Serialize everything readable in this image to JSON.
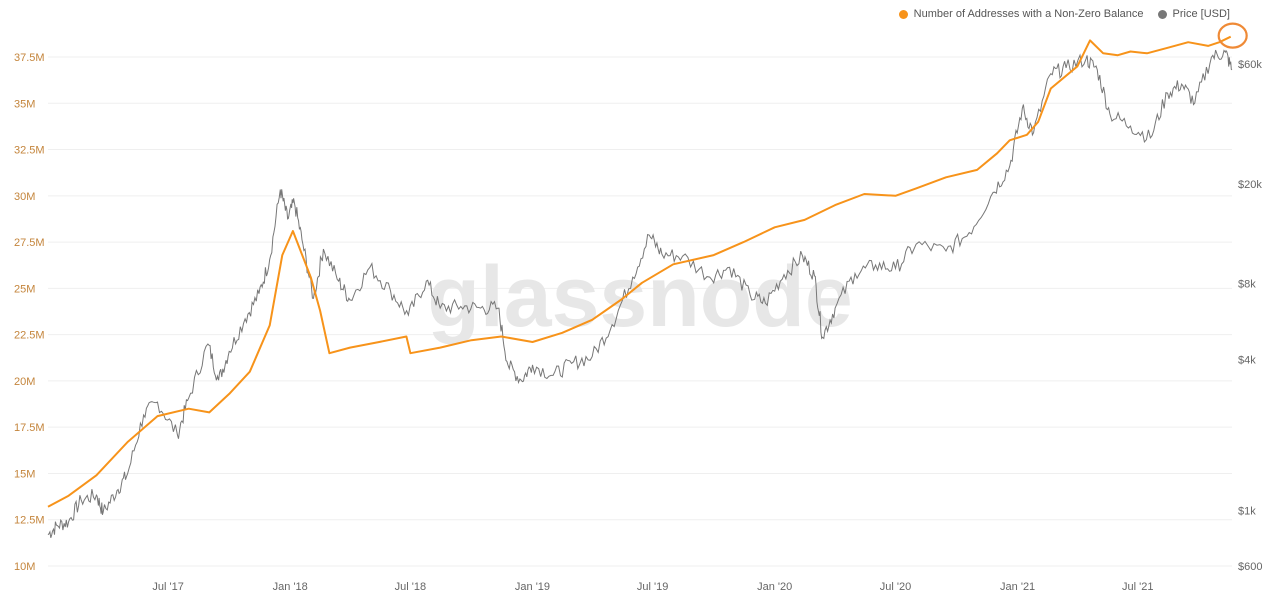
{
  "watermark": "glassnode",
  "colors": {
    "addresses": "#f7931a",
    "price": "#777777",
    "grid": "#efefef",
    "left_tick": "#c4853c",
    "right_tick": "#666666",
    "x_tick": "#666666"
  },
  "chart_data": {
    "type": "line",
    "legend": [
      {
        "label": "Number of Addresses with a Non-Zero Balance",
        "color": "#f7931a"
      },
      {
        "label": "Price [USD]",
        "color": "#777777"
      }
    ],
    "legend_position": "top-right",
    "grid": true,
    "x_ticks": [
      "Jul '17",
      "Jan '18",
      "Jul '18",
      "Jan '19",
      "Jul '19",
      "Jan '20",
      "Jul '20",
      "Jan '21",
      "Jul '21"
    ],
    "y_left": {
      "ticks": [
        "10M",
        "12.5M",
        "15M",
        "17.5M",
        "20M",
        "22.5M",
        "25M",
        "27.5M",
        "30M",
        "32.5M",
        "35M",
        "37.5M"
      ],
      "range": [
        10000000,
        39500000
      ]
    },
    "y_right": {
      "scale": "log",
      "ticks": [
        "$600",
        "$1k",
        "$4k",
        "$8k",
        "$20k",
        "$60k"
      ],
      "tick_values": [
        600,
        1000,
        4000,
        8000,
        20000,
        60000
      ],
      "range": [
        600,
        90000
      ]
    },
    "x_range": [
      "2017-01-01",
      "2021-11-20"
    ],
    "series": [
      {
        "name": "Number of Addresses with a Non-Zero Balance",
        "axis": "left",
        "points": [
          [
            "2017-01-01",
            13200000
          ],
          [
            "2017-02-01",
            13800000
          ],
          [
            "2017-03-15",
            14900000
          ],
          [
            "2017-05-01",
            16700000
          ],
          [
            "2017-06-15",
            18100000
          ],
          [
            "2017-08-01",
            18500000
          ],
          [
            "2017-09-01",
            18300000
          ],
          [
            "2017-10-01",
            19300000
          ],
          [
            "2017-11-01",
            20500000
          ],
          [
            "2017-12-01",
            23000000
          ],
          [
            "2017-12-20",
            26800000
          ],
          [
            "2018-01-05",
            28100000
          ],
          [
            "2018-02-01",
            25600000
          ],
          [
            "2018-02-15",
            23800000
          ],
          [
            "2018-03-01",
            21500000
          ],
          [
            "2018-04-01",
            21800000
          ],
          [
            "2018-05-15",
            22100000
          ],
          [
            "2018-06-25",
            22400000
          ],
          [
            "2018-07-01",
            21500000
          ],
          [
            "2018-08-15",
            21800000
          ],
          [
            "2018-10-01",
            22200000
          ],
          [
            "2018-11-15",
            22400000
          ],
          [
            "2019-01-01",
            22100000
          ],
          [
            "2019-02-15",
            22600000
          ],
          [
            "2019-04-01",
            23300000
          ],
          [
            "2019-05-15",
            24400000
          ],
          [
            "2019-06-15",
            25300000
          ],
          [
            "2019-08-01",
            26300000
          ],
          [
            "2019-10-01",
            26800000
          ],
          [
            "2019-11-15",
            27500000
          ],
          [
            "2020-01-01",
            28300000
          ],
          [
            "2020-02-15",
            28700000
          ],
          [
            "2020-04-01",
            29500000
          ],
          [
            "2020-05-15",
            30100000
          ],
          [
            "2020-07-01",
            30000000
          ],
          [
            "2020-08-01",
            30400000
          ],
          [
            "2020-09-15",
            31000000
          ],
          [
            "2020-11-01",
            31400000
          ],
          [
            "2020-12-01",
            32300000
          ],
          [
            "2020-12-20",
            33000000
          ],
          [
            "2021-01-15",
            33300000
          ],
          [
            "2021-02-01",
            34000000
          ],
          [
            "2021-02-20",
            35800000
          ],
          [
            "2021-04-01",
            37000000
          ],
          [
            "2021-04-20",
            38400000
          ],
          [
            "2021-05-10",
            37700000
          ],
          [
            "2021-06-01",
            37600000
          ],
          [
            "2021-06-20",
            37800000
          ],
          [
            "2021-07-15",
            37700000
          ],
          [
            "2021-08-15",
            38000000
          ],
          [
            "2021-09-15",
            38300000
          ],
          [
            "2021-10-15",
            38100000
          ],
          [
            "2021-11-01",
            38300000
          ],
          [
            "2021-11-18",
            38600000
          ]
        ]
      },
      {
        "name": "Price [USD]",
        "axis": "right",
        "points": [
          [
            "2017-01-01",
            800
          ],
          [
            "2017-01-15",
            870
          ],
          [
            "2017-02-01",
            900
          ],
          [
            "2017-02-20",
            1100
          ],
          [
            "2017-03-15",
            1150
          ],
          [
            "2017-03-25",
            980
          ],
          [
            "2017-04-15",
            1200
          ],
          [
            "2017-05-01",
            1400
          ],
          [
            "2017-05-25",
            2400
          ],
          [
            "2017-06-15",
            2700
          ],
          [
            "2017-07-15",
            2000
          ],
          [
            "2017-08-01",
            2800
          ],
          [
            "2017-08-30",
            4600
          ],
          [
            "2017-09-15",
            3300
          ],
          [
            "2017-10-01",
            4300
          ],
          [
            "2017-10-25",
            5800
          ],
          [
            "2017-11-15",
            7300
          ],
          [
            "2017-12-01",
            10000
          ],
          [
            "2017-12-17",
            19000
          ],
          [
            "2017-12-28",
            14500
          ],
          [
            "2018-01-07",
            17000
          ],
          [
            "2018-01-20",
            11500
          ],
          [
            "2018-02-05",
            7000
          ],
          [
            "2018-02-20",
            11000
          ],
          [
            "2018-03-15",
            8200
          ],
          [
            "2018-04-01",
            6900
          ],
          [
            "2018-05-01",
            9300
          ],
          [
            "2018-06-01",
            7500
          ],
          [
            "2018-06-28",
            6000
          ],
          [
            "2018-07-25",
            8200
          ],
          [
            "2018-08-15",
            6400
          ],
          [
            "2018-09-15",
            6500
          ],
          [
            "2018-10-15",
            6400
          ],
          [
            "2018-11-10",
            6400
          ],
          [
            "2018-11-25",
            3800
          ],
          [
            "2018-12-15",
            3300
          ],
          [
            "2019-01-01",
            3800
          ],
          [
            "2019-02-01",
            3450
          ],
          [
            "2019-03-01",
            3850
          ],
          [
            "2019-04-01",
            4100
          ],
          [
            "2019-05-01",
            5500
          ],
          [
            "2019-06-01",
            8500
          ],
          [
            "2019-06-26",
            12500
          ],
          [
            "2019-07-15",
            10500
          ],
          [
            "2019-08-15",
            10300
          ],
          [
            "2019-09-25",
            8500
          ],
          [
            "2019-10-25",
            9300
          ],
          [
            "2019-11-25",
            7200
          ],
          [
            "2019-12-18",
            6700
          ],
          [
            "2020-01-15",
            8700
          ],
          [
            "2020-02-12",
            10300
          ],
          [
            "2020-03-01",
            8600
          ],
          [
            "2020-03-13",
            4900
          ],
          [
            "2020-04-01",
            6400
          ],
          [
            "2020-05-01",
            8800
          ],
          [
            "2020-06-01",
            9500
          ],
          [
            "2020-07-01",
            9200
          ],
          [
            "2020-08-01",
            11500
          ],
          [
            "2020-09-15",
            10800
          ],
          [
            "2020-10-20",
            12800
          ],
          [
            "2020-11-25",
            18500
          ],
          [
            "2020-12-20",
            23500
          ],
          [
            "2021-01-08",
            40000
          ],
          [
            "2021-01-25",
            32000
          ],
          [
            "2021-02-20",
            55000
          ],
          [
            "2021-03-15",
            58000
          ],
          [
            "2021-04-14",
            63000
          ],
          [
            "2021-05-01",
            57000
          ],
          [
            "2021-05-20",
            38000
          ],
          [
            "2021-06-20",
            34000
          ],
          [
            "2021-07-20",
            30500
          ],
          [
            "2021-08-15",
            46000
          ],
          [
            "2021-09-05",
            50000
          ],
          [
            "2021-09-25",
            42000
          ],
          [
            "2021-10-20",
            64000
          ],
          [
            "2021-11-10",
            67000
          ],
          [
            "2021-11-20",
            57000
          ]
        ]
      }
    ]
  }
}
